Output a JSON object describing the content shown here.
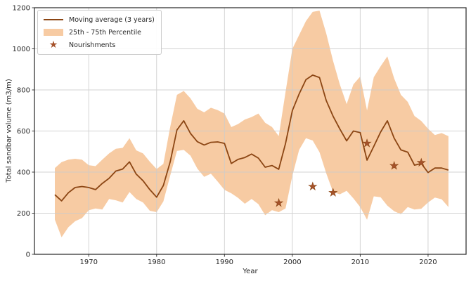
{
  "figure": {
    "background": "#ffffff"
  },
  "chart_data": {
    "type": "line",
    "title": "",
    "xlabel": "Year",
    "ylabel": "Total sandbar volume (m3/m)",
    "xlim": [
      1962,
      2025.6
    ],
    "ylim": [
      0,
      1200
    ],
    "x_ticks": [
      1970,
      1980,
      1990,
      2000,
      2010,
      2020
    ],
    "y_ticks": [
      0,
      200,
      400,
      600,
      800,
      1000,
      1200
    ],
    "grid": true,
    "legend_position": "upper left",
    "x": [
      1965,
      1966,
      1967,
      1968,
      1969,
      1970,
      1971,
      1972,
      1973,
      1974,
      1975,
      1976,
      1977,
      1978,
      1979,
      1980,
      1981,
      1982,
      1983,
      1984,
      1985,
      1986,
      1987,
      1988,
      1989,
      1990,
      1991,
      1992,
      1993,
      1994,
      1995,
      1996,
      1997,
      1998,
      1999,
      2000,
      2001,
      2002,
      2003,
      2004,
      2005,
      2006,
      2007,
      2008,
      2009,
      2010,
      2011,
      2012,
      2013,
      2014,
      2015,
      2016,
      2017,
      2018,
      2019,
      2020,
      2021,
      2022,
      2023
    ],
    "series": [
      {
        "name": "Moving average (3 years)",
        "type": "line",
        "color": "#8B4513",
        "values": [
          290,
          260,
          300,
          325,
          330,
          325,
          315,
          345,
          370,
          405,
          415,
          450,
          390,
          358,
          315,
          278,
          335,
          450,
          605,
          650,
          588,
          548,
          532,
          545,
          547,
          540,
          442,
          462,
          471,
          488,
          468,
          424,
          432,
          414,
          540,
          700,
          780,
          850,
          872,
          860,
          748,
          672,
          610,
          552,
          600,
          592,
          458,
          525,
          595,
          650,
          565,
          508,
          497,
          434,
          442,
          398,
          420,
          420,
          410
        ]
      },
      {
        "name": "25th - 75th Percentile",
        "type": "band",
        "color": "#F7CBA3",
        "upper": [
          420,
          449,
          461,
          465,
          461,
          434,
          429,
          461,
          491,
          514,
          518,
          565,
          506,
          491,
          451,
          415,
          440,
          620,
          776,
          795,
          759,
          708,
          691,
          713,
          702,
          685,
          619,
          634,
          656,
          668,
          685,
          640,
          620,
          575,
          790,
          1000,
          1067,
          1135,
          1180,
          1186,
          1075,
          941,
          827,
          731,
          827,
          865,
          700,
          862,
          915,
          963,
          856,
          776,
          742,
          673,
          649,
          611,
          580,
          590,
          575
        ],
        "lower": [
          169,
          83,
          132,
          161,
          176,
          214,
          223,
          218,
          269,
          263,
          252,
          303,
          269,
          252,
          212,
          205,
          257,
          383,
          503,
          508,
          480,
          417,
          377,
          392,
          354,
          314,
          297,
          275,
          246,
          269,
          244,
          190,
          215,
          205,
          223,
          383,
          508,
          565,
          554,
          497,
          394,
          303,
          292,
          309,
          272,
          230,
          168,
          282,
          278,
          237,
          210,
          195,
          230,
          218,
          222,
          252,
          276,
          268,
          230
        ]
      },
      {
        "name": "Nourishments",
        "type": "scatter",
        "marker": "star",
        "color": "#A5522B",
        "points": [
          [
            1998,
            250
          ],
          [
            2003,
            330
          ],
          [
            2006,
            300
          ],
          [
            2011,
            540
          ],
          [
            2015,
            431
          ],
          [
            2019,
            446
          ]
        ]
      }
    ],
    "colors": {
      "grid": "#cccccc",
      "axis": "#262626",
      "tick_label": "#262626",
      "band": "#F7CBA3",
      "line": "#8B4513",
      "star": "#A5522B"
    }
  }
}
